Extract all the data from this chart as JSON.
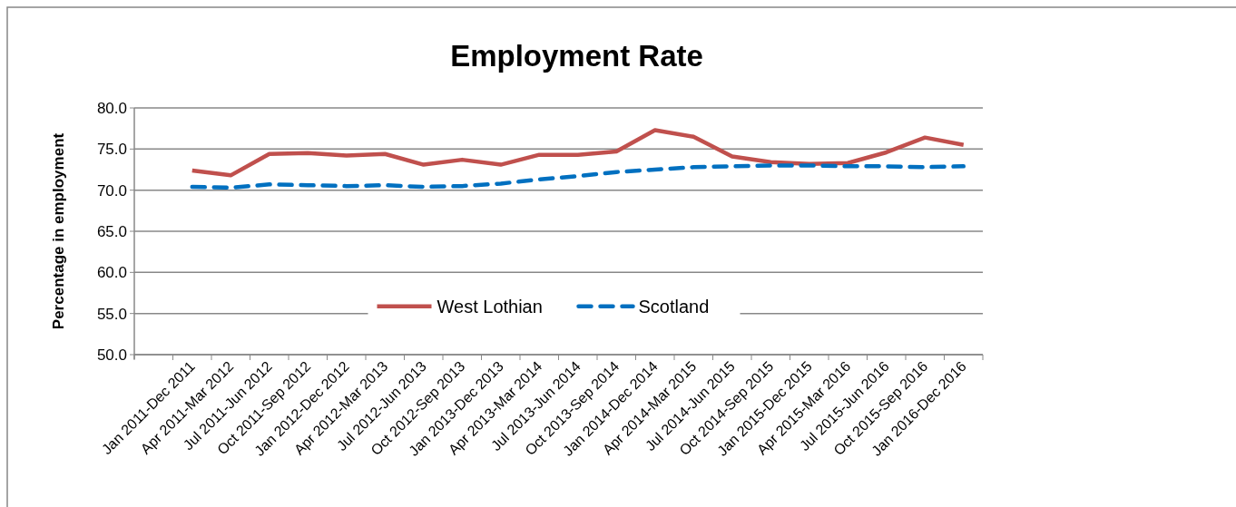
{
  "chart_data": {
    "type": "line",
    "title": "Employment Rate",
    "ylabel": "Percentage in employment",
    "categories": [
      null,
      "Jan 2011-Dec 2011",
      "Apr 2011-Mar 2012",
      "Jul 2011-Jun 2012",
      "Oct 2011-Sep 2012",
      "Jan 2012-Dec 2012",
      "Apr 2012-Mar 2013",
      "Jul 2012-Jun 2013",
      "Oct 2012-Sep 2013",
      "Jan 2013-Dec 2013",
      "Apr 2013-Mar 2014",
      "Jul 2013-Jun 2014",
      "Oct 2013-Sep 2014",
      "Jan 2014-Dec 2014",
      "Apr 2014-Mar 2015",
      "Jul 2014-Jun 2015",
      "Oct 2014-Sep 2015",
      "Jan 2015-Dec 2015",
      "Apr 2015-Mar 2016",
      "Jul 2015-Jun 2016",
      "Oct 2015-Sep 2016",
      "Jan 2016-Dec 2016"
    ],
    "series": [
      {
        "name": "West Lothian",
        "color": "#c0504d",
        "line_style": "solid",
        "values": [
          null,
          72.4,
          71.8,
          74.4,
          74.5,
          74.2,
          74.4,
          73.1,
          73.7,
          73.1,
          74.3,
          74.3,
          74.7,
          77.3,
          76.5,
          74.1,
          73.4,
          73.2,
          73.3,
          74.6,
          76.4,
          75.5
        ]
      },
      {
        "name": "Scotland",
        "color": "#0070c0",
        "line_style": "dashed",
        "values": [
          null,
          70.4,
          70.3,
          70.7,
          70.6,
          70.5,
          70.6,
          70.4,
          70.5,
          70.8,
          71.3,
          71.7,
          72.2,
          72.5,
          72.8,
          72.9,
          73.0,
          73.0,
          72.9,
          72.9,
          72.8,
          72.9
        ]
      }
    ],
    "ylim": [
      50,
      80
    ],
    "yticks": [
      {
        "value": 50,
        "label": "50.0"
      },
      {
        "value": 55,
        "label": "55.0"
      },
      {
        "value": 60,
        "label": "60.0"
      },
      {
        "value": 65,
        "label": "65.0"
      },
      {
        "value": 70,
        "label": "70.0"
      },
      {
        "value": 75,
        "label": "75.0"
      },
      {
        "value": 80,
        "label": "80.0"
      }
    ],
    "grid": "y",
    "legend": "bottom",
    "marker": "none"
  }
}
